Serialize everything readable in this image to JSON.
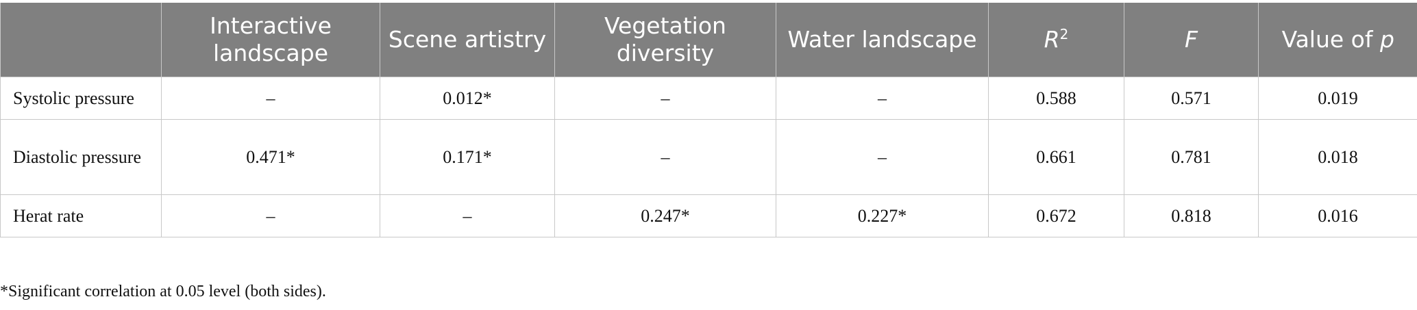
{
  "table": {
    "header": [
      {
        "text": "Interactive landscape"
      },
      {
        "text": "Scene artistry"
      },
      {
        "text": "Vegetation diversity"
      },
      {
        "text": "Water landscape"
      },
      {
        "italic": "R",
        "sup": "2"
      },
      {
        "italic": "F"
      },
      {
        "text": "Value of ",
        "italic": "p"
      }
    ],
    "rows": [
      [
        "Systolic pressure",
        "–",
        "0.012*",
        "–",
        "–",
        "0.588",
        "0.571",
        "0.019"
      ],
      [
        "Diastolic pressure",
        "0.471*",
        "0.171*",
        "–",
        "–",
        "0.661",
        "0.781",
        "0.018"
      ],
      [
        "Herat rate",
        "–",
        "–",
        "0.247*",
        "0.227*",
        "0.672",
        "0.818",
        "0.016"
      ]
    ]
  },
  "footnote": "*Significant correlation at 0.05 level (both sides)."
}
